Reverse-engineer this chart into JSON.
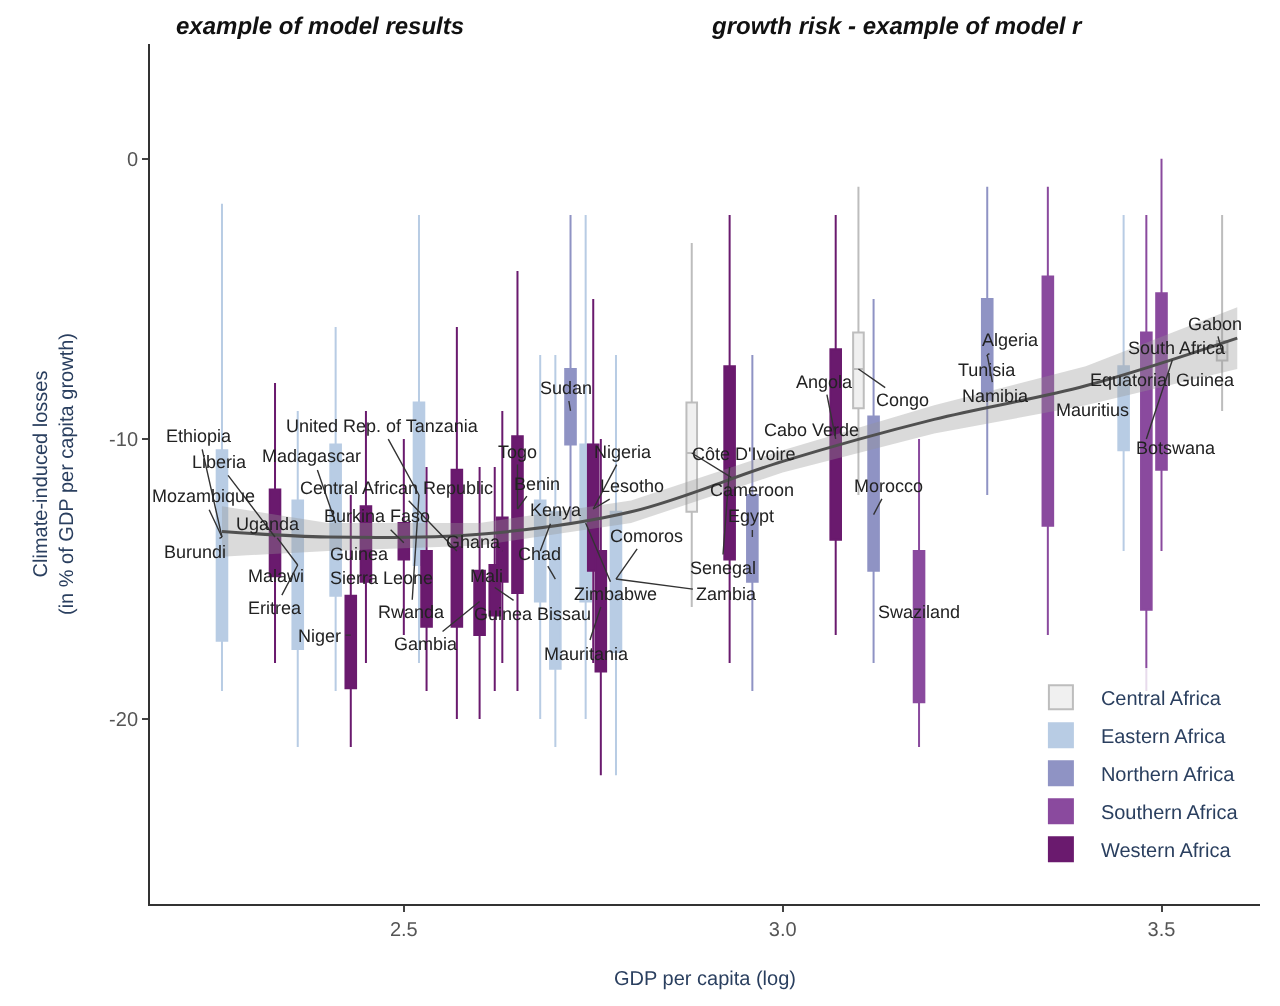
{
  "chart_data": {
    "type": "box",
    "xlabel": "GDP per capita (log)",
    "ylabel": "Climate-induced losses\n(in % of GDP per capita growth)",
    "xlim": [
      2.165,
      3.63
    ],
    "xticks": [
      {
        "value": 2.5,
        "label": "2.5"
      },
      {
        "value": 3,
        "label": "3.0"
      },
      {
        "value": 3.5,
        "label": "3.5"
      }
    ],
    "ylim": [
      -26.6,
      4.1
    ],
    "yticks": [
      0,
      -10,
      -20
    ],
    "legend": "bottom right",
    "series": [
      {
        "name": "Central Africa",
        "color": "#f0f0f0",
        "x": [
          2.88,
          3.1,
          3.58
        ],
        "boxes": [
          {
            "low": -16,
            "q1": -12.6,
            "median": -10.5,
            "q3": -8.7,
            "high": -3
          },
          {
            "low": -12,
            "q1": -8.9,
            "median": -7.5,
            "q3": -6.2,
            "high": -1
          },
          {
            "low": -9,
            "q1": -7.2,
            "median": -6.9,
            "q3": -6.5,
            "high": -2
          }
        ]
      },
      {
        "name": "Eastern Africa",
        "color": "#b8cce4",
        "x": [
          2.26,
          2.36,
          2.41,
          2.52,
          2.68,
          2.7,
          2.74,
          2.78,
          3.45
        ],
        "boxes": [
          {
            "low": -19,
            "q1": -17.2,
            "median": -13.5,
            "q3": -10.4,
            "high": -1.6
          },
          {
            "low": -21,
            "q1": -17.5,
            "median": -14.5,
            "q3": -12.2,
            "high": -9
          },
          {
            "low": -19,
            "q1": -15.6,
            "median": -13,
            "q3": -10.2,
            "high": -6
          },
          {
            "low": -18,
            "q1": -14.5,
            "median": -12,
            "q3": -8.7,
            "high": -2
          },
          {
            "low": -20,
            "q1": -15.8,
            "median": -14,
            "q3": -12.2,
            "high": -7
          },
          {
            "low": -21,
            "q1": -18.2,
            "median": -15,
            "q3": -12.6,
            "high": -7
          },
          {
            "low": -20,
            "q1": -15.8,
            "median": -13,
            "q3": -10.2,
            "high": -2
          },
          {
            "low": -22,
            "q1": -17.6,
            "median": -15,
            "q3": -12.6,
            "high": -7
          },
          {
            "low": -14,
            "q1": -10.4,
            "median": -9,
            "q3": -7.4,
            "high": -2
          }
        ]
      },
      {
        "name": "Northern Africa",
        "color": "#8f93c4",
        "x": [
          2.72,
          2.96,
          3.12,
          3.27
        ],
        "boxes": [
          {
            "low": -13,
            "q1": -10.2,
            "median": -9,
            "q3": -7.5,
            "high": -2
          },
          {
            "low": -19,
            "q1": -15.1,
            "median": -13.5,
            "q3": -12,
            "high": -7
          },
          {
            "low": -18,
            "q1": -14.7,
            "median": -12.7,
            "q3": -9.2,
            "high": -5
          },
          {
            "low": -12,
            "q1": -8.6,
            "median": -7,
            "q3": -5,
            "high": -1
          }
        ]
      },
      {
        "name": "Southern Africa",
        "color": "#8a4a9e",
        "x": [
          3.18,
          3.35,
          3.48,
          3.5
        ],
        "boxes": [
          {
            "low": -21,
            "q1": -19.4,
            "median": -16.5,
            "q3": -14,
            "high": -10
          },
          {
            "low": -17,
            "q1": -13.1,
            "median": -8.5,
            "q3": -4.2,
            "high": -1
          },
          {
            "low": -19,
            "q1": -16.1,
            "median": -10,
            "q3": -6.2,
            "high": -2
          },
          {
            "low": -14,
            "q1": -11.1,
            "median": -8,
            "q3": -4.8,
            "high": 0
          }
        ]
      },
      {
        "name": "Western Africa",
        "color": "#6a1a6e",
        "x": [
          2.33,
          2.43,
          2.45,
          2.5,
          2.53,
          2.57,
          2.6,
          2.62,
          2.63,
          2.65,
          2.75,
          2.76,
          2.93,
          3.07
        ],
        "boxes": [
          {
            "low": -18,
            "q1": -14.9,
            "median": -13.5,
            "q3": -11.8,
            "high": -8
          },
          {
            "low": -21,
            "q1": -18.9,
            "median": -17,
            "q3": -15.6,
            "high": -12
          },
          {
            "low": -18,
            "q1": -15.1,
            "median": -14,
            "q3": -12.4,
            "high": -9
          },
          {
            "low": -17,
            "q1": -14.3,
            "median": -13.7,
            "q3": -13,
            "high": -10
          },
          {
            "low": -19,
            "q1": -16.7,
            "median": -15.3,
            "q3": -14,
            "high": -11
          },
          {
            "low": -20,
            "q1": -16.7,
            "median": -14,
            "q3": -11.1,
            "high": -6
          },
          {
            "low": -20,
            "q1": -17,
            "median": -15.8,
            "q3": -14.7,
            "high": -11
          },
          {
            "low": -19,
            "q1": -16.3,
            "median": -15.3,
            "q3": -14.5,
            "high": -11
          },
          {
            "low": -18,
            "q1": -15.1,
            "median": -14,
            "q3": -12.8,
            "high": -9
          },
          {
            "low": -19,
            "q1": -15.5,
            "median": -12.5,
            "q3": -9.9,
            "high": -4
          },
          {
            "low": -18,
            "q1": -14.7,
            "median": -12.5,
            "q3": -10.2,
            "high": -5
          },
          {
            "low": -22,
            "q1": -18.3,
            "median": -16,
            "q3": -14,
            "high": -10
          },
          {
            "low": -18,
            "q1": -14.3,
            "median": -11,
            "q3": -7.4,
            "high": -2
          },
          {
            "low": -17,
            "q1": -13.6,
            "median": -10,
            "q3": -6.8,
            "high": -2
          }
        ]
      },
      {
        "type": "line",
        "color": "#505050",
        "x": [
          2.26,
          2.4,
          2.6,
          2.8,
          3.0,
          3.2,
          3.4,
          3.6
        ],
        "values": [
          -13.3,
          -13.5,
          -13.4,
          -12.6,
          -10.8,
          -9.3,
          -8.1,
          -6.4
        ],
        "lower": [
          -14.2,
          -14.0,
          -13.8,
          -13.0,
          -11.2,
          -9.8,
          -8.8,
          -7.5
        ],
        "upper": [
          -12.4,
          -13.0,
          -13.0,
          -12.2,
          -10.4,
          -8.8,
          -7.4,
          -5.3
        ]
      }
    ],
    "annotations": [
      "example of model results",
      "growth risk - example of model r",
      {
        "text": "Ethiopia",
        "x": 2.26,
        "y": -13.5
      },
      {
        "text": "Liberia",
        "x": 2.33,
        "y": -13.5
      },
      {
        "text": "Mozambique",
        "x": 2.26,
        "y": -13.5
      },
      {
        "text": "Burundi",
        "x": 2.26,
        "y": -13.5
      },
      {
        "text": "United Rep. of Tanzania",
        "x": 2.52,
        "y": -12
      },
      {
        "text": "Madagascar",
        "x": 2.41,
        "y": -13
      },
      {
        "text": "Central African Republic",
        "x": 2.57,
        "y": -14
      },
      {
        "text": "Uganda",
        "x": 2.36,
        "y": -14.5
      },
      {
        "text": "Burkina Faso",
        "x": 2.5,
        "y": -13.7
      },
      {
        "text": "Malawi",
        "x": 2.36,
        "y": -14.5
      },
      {
        "text": "Guinea",
        "x": 2.45,
        "y": -14
      },
      {
        "text": "Eritrea",
        "x": 2.36,
        "y": -14.5
      },
      {
        "text": "Sierra Leone",
        "x": 2.53,
        "y": -15.3
      },
      {
        "text": "Rwanda",
        "x": 2.52,
        "y": -12
      },
      {
        "text": "Niger",
        "x": 2.43,
        "y": -17
      },
      {
        "text": "Gambia",
        "x": 2.6,
        "y": -15.8
      },
      {
        "text": "Ghana",
        "x": 2.63,
        "y": -14
      },
      {
        "text": "Mali",
        "x": 2.62,
        "y": -15.3
      },
      {
        "text": "Guinea Bissau",
        "x": 2.62,
        "y": -15.3
      },
      {
        "text": "Togo",
        "x": 2.65,
        "y": -12.5
      },
      {
        "text": "Benin",
        "x": 2.65,
        "y": -12.5
      },
      {
        "text": "Kenya",
        "x": 2.68,
        "y": -14
      },
      {
        "text": "Chad",
        "x": 2.7,
        "y": -15
      },
      {
        "text": "Zimbabwe",
        "x": 2.74,
        "y": -13
      },
      {
        "text": "Mauritania",
        "x": 2.76,
        "y": -16
      },
      {
        "text": "Sudan",
        "x": 2.72,
        "y": -9
      },
      {
        "text": "Nigeria",
        "x": 2.75,
        "y": -12.5
      },
      {
        "text": "Lesotho",
        "x": 2.75,
        "y": -12.5
      },
      {
        "text": "Comoros",
        "x": 2.78,
        "y": -15
      },
      {
        "text": "Senegal",
        "x": 2.93,
        "y": -11
      },
      {
        "text": "Zambia",
        "x": 2.78,
        "y": -15
      },
      {
        "text": "Côte D'Ivoire",
        "x": 2.88,
        "y": -10.5
      },
      {
        "text": "Cameroon",
        "x": 2.88,
        "y": -10.5
      },
      {
        "text": "Egypt",
        "x": 2.96,
        "y": -13.5
      },
      {
        "text": "Cabo Verde",
        "x": 3.07,
        "y": -10
      },
      {
        "text": "Angola",
        "x": 3.07,
        "y": -10
      },
      {
        "text": "Congo",
        "x": 3.1,
        "y": -7.5
      },
      {
        "text": "Morocco",
        "x": 3.12,
        "y": -12.7
      },
      {
        "text": "Swaziland",
        "x": 3.18,
        "y": -16.5
      },
      {
        "text": "Tunisia",
        "x": 3.27,
        "y": -7
      },
      {
        "text": "Algeria",
        "x": 3.27,
        "y": -7
      },
      {
        "text": "Namibia",
        "x": 3.27,
        "y": -7
      },
      {
        "text": "Mauritius",
        "x": 3.45,
        "y": -9
      },
      {
        "text": "South Africa",
        "x": 3.48,
        "y": -10
      },
      {
        "text": "Equatorial Guinea",
        "x": 3.5,
        "y": -8
      },
      {
        "text": "Botswana",
        "x": 3.48,
        "y": -10
      },
      {
        "text": "Gabon",
        "x": 3.58,
        "y": -6.9
      }
    ]
  }
}
